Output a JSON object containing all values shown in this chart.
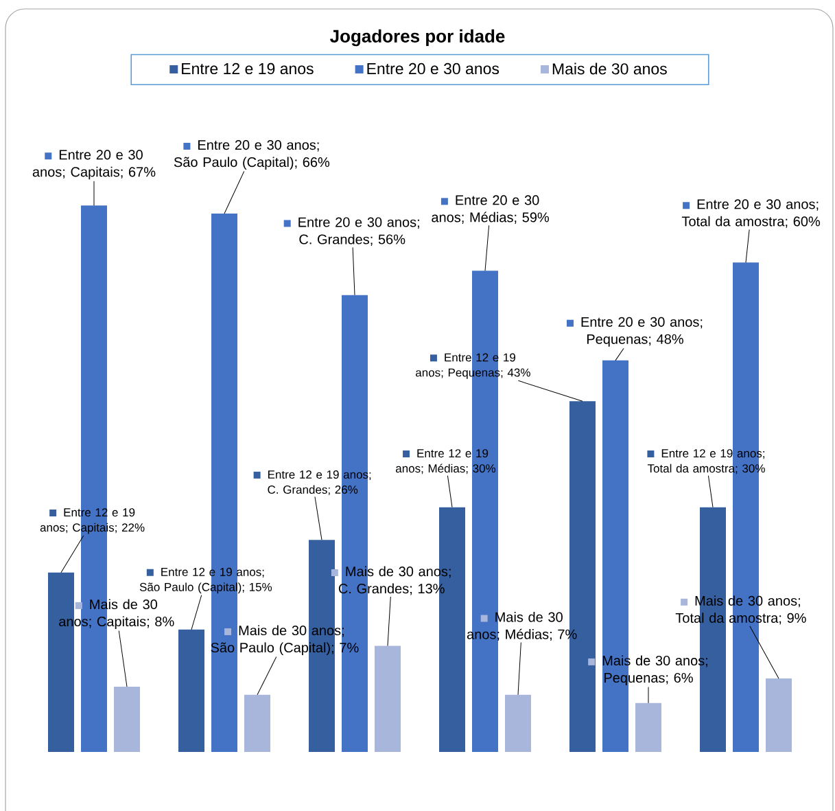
{
  "chart_data": {
    "type": "bar",
    "title": "Jogadores por idade",
    "categories": [
      null,
      null,
      null,
      null,
      null,
      null
    ],
    "legend": "top",
    "series": [
      {
        "name": "Entre 12 e 19 anos",
        "color": "#365f9f",
        "values": [
          22,
          15,
          26,
          30,
          43,
          30
        ],
        "value_labels": [
          "Entre 12 e 19 anos; Capitais; 22%",
          "Entre 12 e 19 anos; São Paulo (Capital); 15%",
          "Entre 12 e 19 anos; C. Grandes; 26%",
          "Entre 12 e 19 anos; Médias; 30%",
          "Entre 12 e 19 anos; Pequenas; 43%",
          "Entre 12 e 19 anos; Total da amostra; 30%"
        ]
      },
      {
        "name": "Entre 20 e 30 anos",
        "color": "#4472c4",
        "values": [
          67,
          66,
          56,
          59,
          48,
          60
        ],
        "value_labels": [
          "Entre 20 e 30 anos; Capitais; 67%",
          "Entre 20 e 30 anos; São Paulo (Capital); 66%",
          "Entre 20 e 30 anos; C. Grandes; 56%",
          "Entre 20 e 30 anos; Médias; 59%",
          "Entre 20 e 30 anos; Pequenas; 48%",
          "Entre 20 e 30 anos; Total da amostra; 60%"
        ]
      },
      {
        "name": "Mais de 30 anos",
        "color": "#a9b6dc",
        "values": [
          8,
          7,
          13,
          7,
          6,
          9
        ],
        "value_labels": [
          "Mais de 30 anos; Capitais; 8%",
          "Mais de 30 anos; São Paulo (Capital); 7%",
          "Mais de 30 anos; C. Grandes; 13%",
          "Mais de 30 anos; Médias; 7%",
          "Mais de 30 anos; Pequenas; 6%",
          "Mais de 30 anos; Total da amostra; 9%"
        ]
      }
    ]
  }
}
